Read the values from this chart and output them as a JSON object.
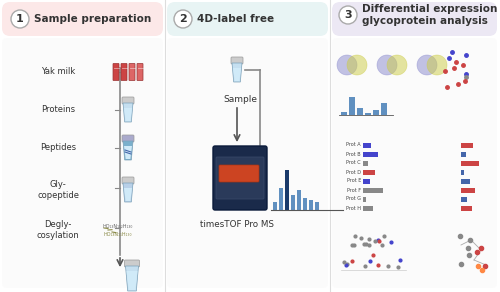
{
  "panel1_title": "Sample preparation",
  "panel1_num": "1",
  "panel2_title": "4D-label free",
  "panel2_num": "2",
  "panel3_title": "Differential expression\nglycoprotein analysis",
  "panel3_num": "3",
  "panel1_bg": "#fce8e8",
  "panel2_bg": "#e8f4f4",
  "panel3_bg": "#ece8f4",
  "panel1_items": [
    "Yak milk",
    "Proteins",
    "Peptides",
    "Gly-\ncopeptide",
    "Degly-\ncosylation"
  ],
  "panel2_label": "Sample",
  "panel2_instrument": "timesTOF Pro MS",
  "arrow_color": "#555555",
  "text_color": "#333333",
  "line_color": "#888888",
  "fig_bg": "#ffffff",
  "tube_light_blue": "#b8d8e8",
  "tube_blue": "#7ab0cc",
  "venn_blue": "#8080c0",
  "venn_yellow": "#d4c840",
  "bar_blue": "#6090c0",
  "bar_dark": "#303060",
  "title_fontsize": 7.5,
  "label_fontsize": 6.0,
  "num_fontsize": 8,
  "figsize": [
    5.0,
    2.92
  ],
  "dpi": 100
}
